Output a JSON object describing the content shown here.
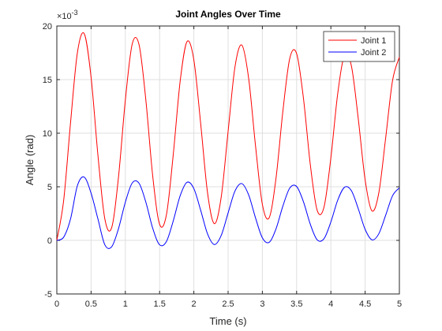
{
  "chart_data": {
    "type": "line",
    "title": "Joint Angles Over Time",
    "xlabel": "Time (s)",
    "ylabel": "Angle (rad)",
    "y_multiplier": {
      "base": "×10",
      "power": "-3"
    },
    "x": [
      0,
      0.1,
      0.2,
      0.3,
      0.4,
      0.5,
      0.6,
      0.7,
      0.8,
      0.9,
      1,
      1.1,
      1.2,
      1.3,
      1.4,
      1.5,
      1.6,
      1.7,
      1.8,
      1.9,
      2,
      2.1,
      2.2,
      2.3,
      2.4,
      2.5,
      2.6,
      2.7,
      2.8,
      2.9,
      3,
      3.1,
      3.2,
      3.3,
      3.4,
      3.5,
      3.6,
      3.7,
      3.8,
      3.9,
      4,
      4.1,
      4.2,
      4.3,
      4.4,
      4.5,
      4.6,
      4.7,
      4.8,
      4.9,
      5
    ],
    "series": [
      {
        "name": "Joint 1",
        "color": "#ff0000",
        "values": [
          0,
          3.74,
          10.97,
          17.5,
          19.28,
          15.22,
          7.94,
          2.03,
          1.18,
          5.9,
          13.08,
          18.31,
          18.26,
          13.05,
          5.98,
          1.5,
          2.4,
          8.05,
          14.84,
          18.54,
          16.83,
          10.87,
          4.43,
          1.56,
          4.07,
          10.17,
          16.17,
          18.22,
          15.11,
          8.83,
          3.36,
          2.12,
          5.84,
          12.08,
          16.98,
          17.43,
          13.24,
          7.06,
          2.81,
          3.11,
          7.7,
          13.69,
          17.28,
          16.27,
          11.34,
          5.65,
          2.75,
          4.44,
          9.56,
          14.9,
          17.1
        ]
      },
      {
        "name": "Joint 2",
        "color": "#0000ff",
        "values": [
          0,
          0.3,
          2.0,
          5.1,
          5.9,
          4.4,
          2.0,
          -0.4,
          -0.6,
          1.09,
          3.56,
          5.35,
          5.33,
          3.55,
          1.12,
          -0.41,
          -0.1,
          1.83,
          4.16,
          5.42,
          4.83,
          2.8,
          0.6,
          -0.39,
          0.47,
          2.56,
          4.6,
          5.3,
          4.24,
          2.1,
          0.24,
          -0.18,
          1.09,
          3.21,
          4.88,
          5.03,
          3.6,
          1.5,
          0.05,
          0.16,
          1.72,
          3.75,
          4.96,
          4.63,
          2.95,
          1.03,
          0.05,
          0.62,
          2.35,
          4.16,
          4.9
        ]
      }
    ],
    "xlim": [
      0,
      5
    ],
    "xticks": [
      0,
      0.5,
      1,
      1.5,
      2,
      2.5,
      3,
      3.5,
      4,
      4.5,
      5
    ],
    "ylim": [
      -5,
      20
    ],
    "yticks": [
      -5,
      0,
      5,
      10,
      15,
      20
    ],
    "grid": true,
    "legend": "northeast"
  }
}
